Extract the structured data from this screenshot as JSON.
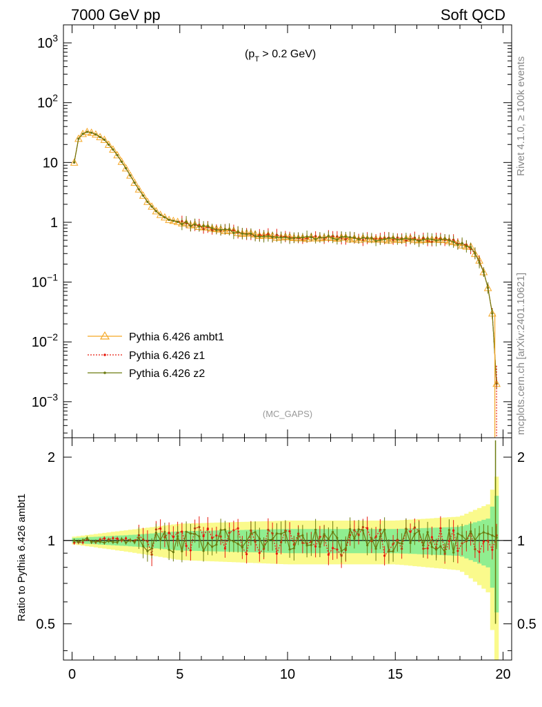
{
  "header": {
    "left": "7000 GeV pp",
    "right": "Soft QCD"
  },
  "side_labels": {
    "rivet": "Rivet 4.1.0, ≥ 100k events",
    "mcplots": "mcplots.cern.ch [arXiv:2401.10621]"
  },
  "cut_label": "(p_T > 0.2 GeV)",
  "cut_parts": {
    "open": "(p",
    "sub": "T",
    "rest": " > 0.2 GeV)"
  },
  "analysis_tag": "(MC_GAPS)",
  "colors": {
    "ambt1": "#f5a623",
    "z1": "#e8190c",
    "z2": "#6b7a0f",
    "band_green": "#90ee90",
    "band_yellow": "#fafa8c"
  },
  "chart_data": [
    {
      "type": "line",
      "title": "",
      "xlabel": "",
      "ylabel": "",
      "xlim": [
        -0.4,
        20.4
      ],
      "ylim": [
        0.00025,
        2000
      ],
      "yscale": "log",
      "yticks": [
        {
          "value": 1000,
          "label": "10",
          "exp": "3"
        },
        {
          "value": 100,
          "label": "10",
          "exp": "2"
        },
        {
          "value": 10,
          "label": "10",
          "exp": ""
        },
        {
          "value": 1,
          "label": "1",
          "exp": ""
        },
        {
          "value": 0.1,
          "label": "10",
          "exp": "−1"
        },
        {
          "value": 0.01,
          "label": "10",
          "exp": "−2"
        },
        {
          "value": 0.001,
          "label": "10",
          "exp": "−3"
        }
      ],
      "legend": [
        {
          "name": "Pythia 6.426 ambt1",
          "key": "ambt1",
          "marker": "triangle"
        },
        {
          "name": "Pythia 6.426 z1",
          "key": "z1",
          "marker": "dot"
        },
        {
          "name": "Pythia 6.426 z2",
          "key": "z2",
          "marker": "dot"
        }
      ],
      "curve_x": [
        0.1,
        0.3,
        0.6,
        1.0,
        1.5,
        2.0,
        2.5,
        3.0,
        3.5,
        4.0,
        4.5,
        5.0,
        6.0,
        7.0,
        8.0,
        9.0,
        10.0,
        12.0,
        14.0,
        16.0,
        17.5,
        18.5,
        19.0,
        19.3,
        19.5,
        19.6,
        19.7
      ],
      "curve_y": [
        10.0,
        25.0,
        33.0,
        31.0,
        24.0,
        15.0,
        8.0,
        4.0,
        2.2,
        1.4,
        1.1,
        1.0,
        0.85,
        0.75,
        0.65,
        0.6,
        0.55,
        0.55,
        0.52,
        0.52,
        0.5,
        0.38,
        0.2,
        0.08,
        0.03,
        0.007,
        0.002
      ],
      "series": [
        {
          "name": "Pythia 6.426 ambt1",
          "key": "ambt1"
        },
        {
          "name": "Pythia 6.426 z1",
          "key": "z1"
        },
        {
          "name": "Pythia 6.426 z2",
          "key": "z2"
        }
      ],
      "xticks": [
        0,
        5,
        10,
        15,
        20
      ]
    },
    {
      "type": "line",
      "title": "",
      "xlabel": "",
      "ylabel": "Ratio to Pythia 6.426 ambt1",
      "xlim": [
        -0.4,
        20.4
      ],
      "ylim": [
        0.37,
        2.35
      ],
      "yscale": "log",
      "yticks": [
        0.5,
        1,
        2
      ],
      "ytick_labels": [
        "0.5",
        "1",
        "2"
      ],
      "xticks": [
        0,
        5,
        10,
        15,
        20
      ],
      "xtick_labels": [
        "0",
        "5",
        "10",
        "15",
        "20"
      ],
      "band_green_halfwidth": [
        [
          0,
          0.02
        ],
        [
          3,
          0.05
        ],
        [
          5,
          0.08
        ],
        [
          10,
          0.1
        ],
        [
          15,
          0.1
        ],
        [
          18,
          0.12
        ],
        [
          19.3,
          0.2
        ],
        [
          19.7,
          0.45
        ]
      ],
      "band_yellow_halfwidth": [
        [
          0,
          0.03
        ],
        [
          3,
          0.1
        ],
        [
          5,
          0.15
        ],
        [
          10,
          0.18
        ],
        [
          15,
          0.18
        ],
        [
          18,
          0.22
        ],
        [
          19.3,
          0.35
        ],
        [
          19.7,
          0.7
        ]
      ],
      "series": [
        {
          "name": "Pythia 6.426 z1",
          "key": "z1",
          "spread": 0.12
        },
        {
          "name": "Pythia 6.426 z2",
          "key": "z2",
          "spread": 0.1
        }
      ],
      "end_spike": {
        "x": 19.65,
        "values": [
          2.3,
          0.5
        ]
      }
    }
  ]
}
